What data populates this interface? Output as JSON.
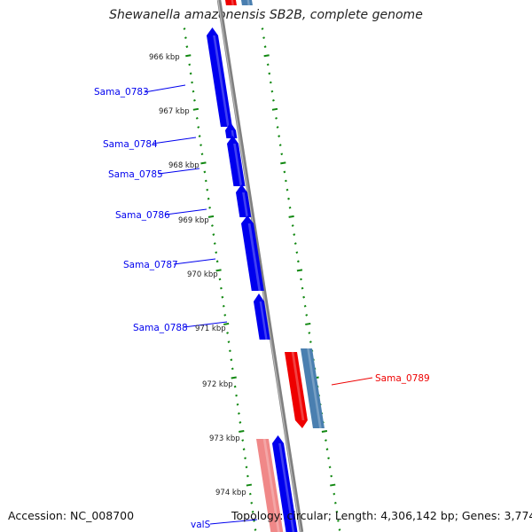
{
  "title": "Shewanella amazonensis SB2B, complete genome",
  "footer": {
    "accession": "Accession: NC_008700",
    "summary": "Topology: circular; Length: 4,306,142 bp; Genes: 3,774"
  },
  "colors": {
    "forward_cds": "#0000ee",
    "reverse_cds": "#ee0000",
    "reverse_gene": "#4a7fb0",
    "trna_light": "#f08888",
    "backbone": "#808080",
    "tick": "#118811"
  },
  "ruler": {
    "ticks": [
      "966 kbp",
      "967 kbp",
      "968 kbp",
      "969 kbp",
      "970 kbp",
      "971 kbp",
      "972 kbp",
      "973 kbp",
      "974 kbp"
    ]
  },
  "features": [
    {
      "name": "Sama_0783",
      "strand": "forward"
    },
    {
      "name": "Sama_0784",
      "strand": "forward"
    },
    {
      "name": "Sama_0785",
      "strand": "forward"
    },
    {
      "name": "Sama_0786",
      "strand": "forward"
    },
    {
      "name": "Sama_0787",
      "strand": "forward"
    },
    {
      "name": "Sama_0788",
      "strand": "forward"
    },
    {
      "name": "Sama_0789",
      "strand": "reverse"
    },
    {
      "name": "valS",
      "strand": "forward"
    }
  ]
}
